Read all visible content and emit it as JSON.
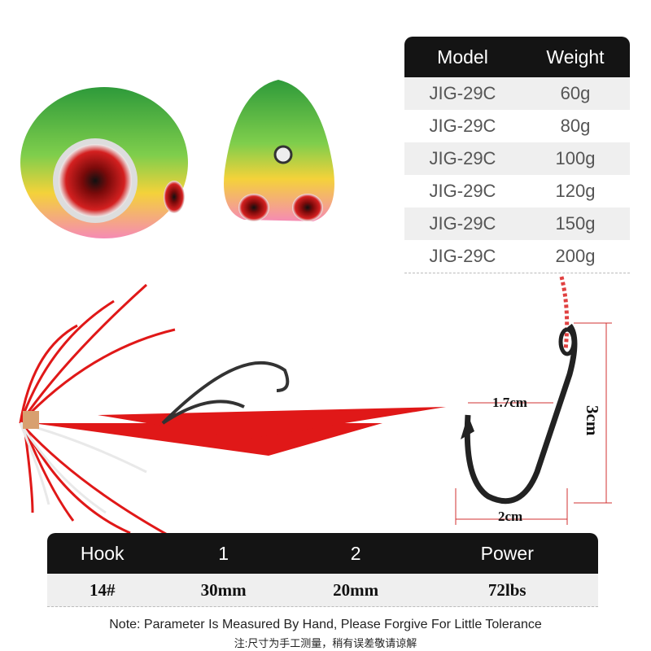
{
  "weight_table": {
    "headers": [
      "Model",
      "Weight"
    ],
    "rows": [
      [
        "JIG-29C",
        "60g"
      ],
      [
        "JIG-29C",
        "80g"
      ],
      [
        "JIG-29C",
        "100g"
      ],
      [
        "JIG-29C",
        "120g"
      ],
      [
        "JIG-29C",
        "150g"
      ],
      [
        "JIG-29C",
        "200g"
      ]
    ]
  },
  "hook_dimensions": {
    "gap": "1.7cm",
    "height": "3cm",
    "width": "2cm"
  },
  "spec_table": {
    "headers": [
      "Hook",
      "1",
      "2",
      "Power"
    ],
    "rows": [
      [
        "14#",
        "30mm",
        "20mm",
        "72lbs"
      ]
    ]
  },
  "note": {
    "en": "Note: Parameter Is Measured By Hand, Please Forgive For Little Tolerance",
    "zh": "注:尺寸为手工测量，稍有误差敬请谅解"
  }
}
